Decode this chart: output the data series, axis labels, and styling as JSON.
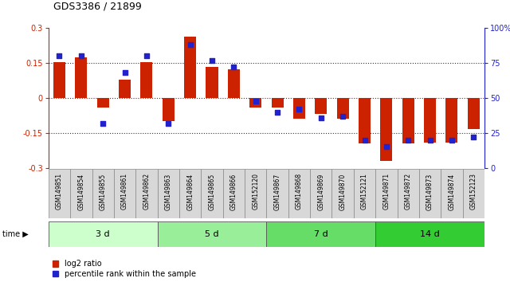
{
  "title": "GDS3386 / 21899",
  "samples": [
    "GSM149851",
    "GSM149854",
    "GSM149855",
    "GSM149861",
    "GSM149862",
    "GSM149863",
    "GSM149864",
    "GSM149865",
    "GSM149866",
    "GSM152120",
    "GSM149867",
    "GSM149868",
    "GSM149869",
    "GSM149870",
    "GSM152121",
    "GSM149871",
    "GSM149872",
    "GSM149873",
    "GSM149874",
    "GSM152123"
  ],
  "log2_ratio": [
    0.155,
    0.175,
    -0.04,
    0.08,
    0.155,
    -0.1,
    0.265,
    0.135,
    0.125,
    -0.04,
    -0.04,
    -0.09,
    -0.07,
    -0.09,
    -0.195,
    -0.27,
    -0.195,
    -0.19,
    -0.19,
    -0.135
  ],
  "percentile": [
    80,
    80,
    32,
    68,
    80,
    32,
    88,
    77,
    72,
    48,
    40,
    42,
    36,
    37,
    20,
    15,
    20,
    20,
    20,
    22
  ],
  "groups": [
    {
      "label": "3 d",
      "start": 0,
      "end": 5,
      "color": "#ccffcc"
    },
    {
      "label": "5 d",
      "start": 5,
      "end": 10,
      "color": "#99ee99"
    },
    {
      "label": "7 d",
      "start": 10,
      "end": 15,
      "color": "#66dd66"
    },
    {
      "label": "14 d",
      "start": 15,
      "end": 20,
      "color": "#33cc33"
    }
  ],
  "ylim": [
    -0.3,
    0.3
  ],
  "y2lim": [
    0,
    100
  ],
  "yticks_left": [
    -0.3,
    -0.15,
    0.0,
    0.15,
    0.3
  ],
  "ytick_labels_left": [
    "-0.3",
    "-0.15",
    "0",
    "0.15",
    "0.3"
  ],
  "yticks_right": [
    0,
    25,
    50,
    75,
    100
  ],
  "ytick_labels_right": [
    "0",
    "25",
    "50",
    "75",
    "100%"
  ],
  "bar_color": "#cc2200",
  "dot_color": "#2222cc",
  "hline_color": "#cc0000",
  "dotted_color": "#333333",
  "bg_color": "#ffffff",
  "bar_width": 0.55,
  "dot_size": 22,
  "cell_color": "#d8d8d8",
  "cell_edge": "#888888"
}
